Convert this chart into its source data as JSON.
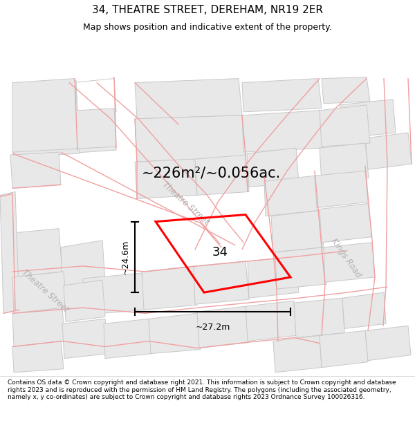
{
  "title": "34, THEATRE STREET, DEREHAM, NR19 2ER",
  "subtitle": "Map shows position and indicative extent of the property.",
  "footer": "Contains OS data © Crown copyright and database right 2021. This information is subject to Crown copyright and database rights 2023 and is reproduced with the permission of HM Land Registry. The polygons (including the associated geometry, namely x, y co-ordinates) are subject to Crown copyright and database rights 2023 Ordnance Survey 100026316.",
  "area_label": "~226m²/~0.056ac.",
  "number_label": "34",
  "dim_width_label": "~27.2m",
  "dim_height_label": "~24.6m",
  "street_label_theatre_upper": "Theatre Street",
  "street_label_theatre_lower": "Theatre Street",
  "street_label_kings": "Kings Road",
  "map_bg": "#ffffff",
  "plot_outline_color": "#ff0000",
  "road_outline_color": "#f0a0a0",
  "parcel_fill": "#e8e8e8",
  "parcel_edge": "#c8c8c8",
  "title_fontsize": 11,
  "subtitle_fontsize": 9,
  "area_fontsize": 15,
  "number_fontsize": 13,
  "dim_fontsize": 9,
  "street_fontsize": 8.5,
  "footer_fontsize": 6.5
}
